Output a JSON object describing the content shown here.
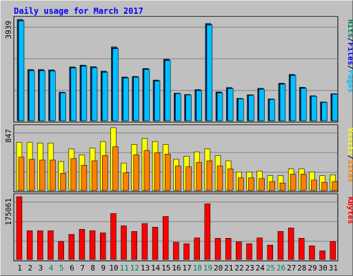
{
  "title": "Daily usage for March 2017",
  "colors": {
    "background": "#c0c0c0",
    "page_bg": "#ffffff",
    "title": "#0000ff",
    "grid": "#808080",
    "hits": "#00805c",
    "files": "#0000ff",
    "pages": "#00c0ff",
    "visits": "#ffff00",
    "sites": "#ff8000",
    "kbytes": "#ff0000",
    "weekend_label": "#00805c",
    "weekday_label": "#000000"
  },
  "chart_data": [
    {
      "type": "bar",
      "name": "hits-files-pages",
      "ymax_label": "3939",
      "ylim": [
        0,
        3939
      ],
      "legend": [
        "Pages",
        "Files",
        "Hits"
      ],
      "categories": [
        "1",
        "2",
        "3",
        "4",
        "5",
        "6",
        "7",
        "8",
        "9",
        "10",
        "11",
        "12",
        "13",
        "14",
        "15",
        "16",
        "17",
        "18",
        "19",
        "20",
        "21",
        "22",
        "23",
        "24",
        "25",
        "26",
        "27",
        "28",
        "29",
        "30",
        "31"
      ],
      "weekend": [
        "4",
        "5",
        "11",
        "12",
        "18",
        "19",
        "25",
        "26"
      ],
      "series": [
        {
          "name": "Hits",
          "values": [
            3939,
            1990,
            1990,
            1980,
            1110,
            2090,
            2160,
            2100,
            1930,
            2870,
            1700,
            1720,
            2030,
            1580,
            2390,
            1070,
            1020,
            1210,
            3780,
            1120,
            1290,
            870,
            1010,
            1260,
            850,
            1460,
            1800,
            1300,
            970,
            730,
            1050
          ]
        },
        {
          "name": "Files",
          "values": [
            3900,
            1960,
            1960,
            1950,
            1090,
            2070,
            2140,
            2080,
            1900,
            2830,
            1680,
            1710,
            2010,
            1560,
            2360,
            1060,
            1010,
            1190,
            3740,
            1100,
            1270,
            860,
            1000,
            1240,
            840,
            1440,
            1780,
            1280,
            960,
            720,
            1040
          ]
        },
        {
          "name": "Pages",
          "values": [
            3880,
            1940,
            1940,
            1930,
            1080,
            2050,
            2120,
            2060,
            1880,
            2800,
            1660,
            1690,
            1990,
            1540,
            2340,
            1050,
            1000,
            1170,
            3720,
            1080,
            1250,
            850,
            990,
            1220,
            830,
            1420,
            1760,
            1260,
            950,
            710,
            1030
          ]
        }
      ]
    },
    {
      "type": "bar",
      "name": "visits-sites",
      "ymax_label": "847",
      "ylim": [
        0,
        847
      ],
      "legend": [
        "Sites",
        "Visits"
      ],
      "categories": [
        "1",
        "2",
        "3",
        "4",
        "5",
        "6",
        "7",
        "8",
        "9",
        "10",
        "11",
        "12",
        "13",
        "14",
        "15",
        "16",
        "17",
        "18",
        "19",
        "20",
        "21",
        "22",
        "23",
        "24",
        "25",
        "26",
        "27",
        "28",
        "29",
        "30",
        "31"
      ],
      "weekend": [
        "4",
        "5",
        "11",
        "12",
        "18",
        "19",
        "25",
        "26"
      ],
      "series": [
        {
          "name": "Visits",
          "values": [
            650,
            650,
            640,
            640,
            390,
            560,
            480,
            570,
            660,
            847,
            370,
            620,
            700,
            660,
            620,
            420,
            460,
            520,
            560,
            470,
            400,
            250,
            250,
            260,
            200,
            200,
            290,
            290,
            250,
            200,
            210
          ]
        },
        {
          "name": "Sites",
          "values": [
            450,
            420,
            410,
            410,
            230,
            430,
            340,
            400,
            470,
            590,
            240,
            480,
            540,
            510,
            490,
            330,
            320,
            380,
            400,
            330,
            290,
            170,
            170,
            160,
            120,
            100,
            220,
            220,
            140,
            110,
            120
          ]
        }
      ]
    },
    {
      "type": "bar",
      "name": "kbytes",
      "ymax_label": "175061",
      "ylim": [
        0,
        175061
      ],
      "legend": [
        "KBytes"
      ],
      "categories": [
        "1",
        "2",
        "3",
        "4",
        "5",
        "6",
        "7",
        "8",
        "9",
        "10",
        "11",
        "12",
        "13",
        "14",
        "15",
        "16",
        "17",
        "18",
        "19",
        "20",
        "21",
        "22",
        "23",
        "24",
        "25",
        "26",
        "27",
        "28",
        "29",
        "30",
        "31"
      ],
      "weekend": [
        "4",
        "5",
        "11",
        "12",
        "18",
        "19",
        "25",
        "26"
      ],
      "series": [
        {
          "name": "KBytes",
          "values": [
            175061,
            80000,
            80000,
            80000,
            50000,
            70000,
            84000,
            80000,
            74000,
            128000,
            94000,
            78000,
            100000,
            90000,
            120000,
            48000,
            44000,
            60000,
            155000,
            59000,
            59000,
            49000,
            44000,
            60000,
            40000,
            78000,
            88000,
            59000,
            38000,
            24000,
            50000
          ]
        }
      ]
    }
  ]
}
